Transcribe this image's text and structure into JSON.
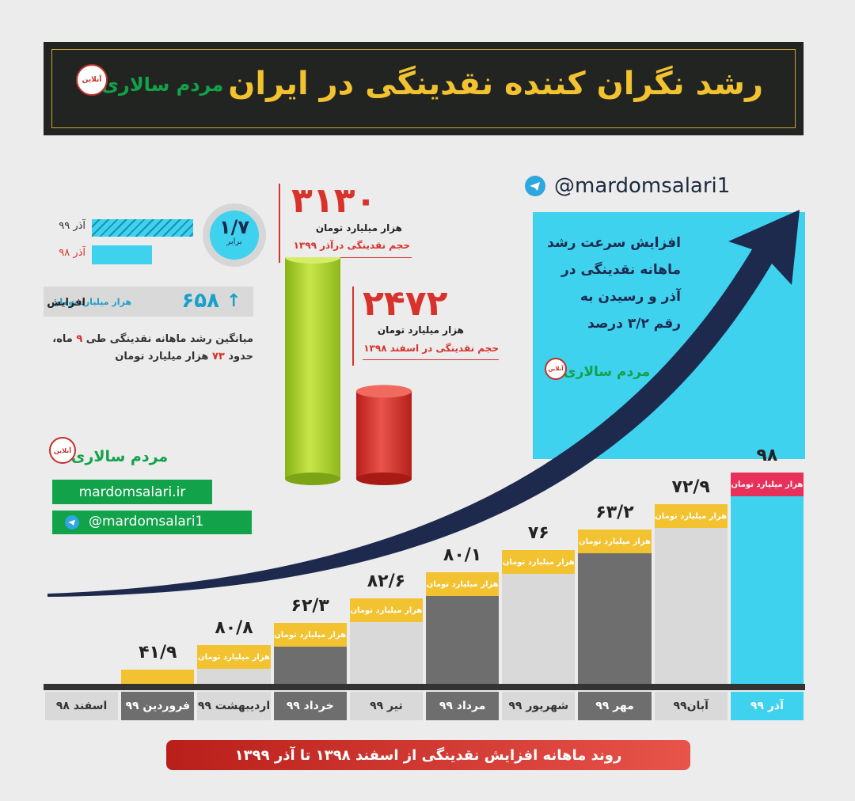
{
  "header": {
    "title": "رشد نگران کننده نقدینگی در ایران",
    "brand": "مردم سالاری",
    "seal": "آنلاین"
  },
  "telegram_top": "@mardomsalari1",
  "colors": {
    "gray": "#6e6e6e",
    "light_gray": "#d9d9d9",
    "cyan": "#3ed2ee",
    "pink": "#e8315a",
    "yellow": "#f2c230",
    "green": "#a6cf2a",
    "red": "#d8322c",
    "navy": "#1d2a4e"
  },
  "callout": {
    "text_lines": [
      "افزایش سرعت رشد",
      "ماهانه نقدینگی در",
      "آذر و رسیدن به",
      "رقم ۳/۲ درصد"
    ],
    "brand": "مردم سالاری"
  },
  "comparison": {
    "ratio": "۱/۷",
    "ratio_label": "برابر",
    "legend": [
      {
        "label": "آذر ۹۹"
      },
      {
        "label": "آذر ۹۸"
      }
    ]
  },
  "increase": {
    "value": "۶۵۸",
    "unit": "هزار میلیارد تومان",
    "label": "افزایش"
  },
  "average": {
    "line1_pre": "میانگین رشد ماهانه نقدینگی طی ",
    "months": "۹",
    "line1_post": " ماه،",
    "line2_pre": "حدود ",
    "value": "۷۳",
    "line2_post": " هزار میلیارد تومان"
  },
  "cylinders": [
    {
      "value_label": "۳۱۳۰",
      "unit": "هزار میلیارد تومان",
      "caption": "حجم نقدینگی درآذر ۱۳۹۹",
      "value": 3130
    },
    {
      "value_label": "۲۴۷۲",
      "unit": "هزار میلیارد تومان",
      "caption": "حجم نقدینگی در اسفند ۱۳۹۸",
      "value": 2472
    }
  ],
  "links": {
    "brand": "مردم سالاری",
    "website": "mardomsalari.ir",
    "telegram": "@mardomsalari1"
  },
  "footer": "روند ماهانه افزایش نقدینگی از اسفند ۱۳۹۸ تا آذر ۱۳۹۹",
  "chart_data": {
    "type": "bar",
    "categories": [
      "اسفند ۹۸",
      "فروردین ۹۹",
      "اردیبهشت ۹۹",
      "خرداد ۹۹",
      "تیر ۹۹",
      "مرداد ۹۹",
      "شهریور ۹۹",
      "مهر ۹۹",
      "آبان۹۹",
      "آذر ۹۹"
    ],
    "values": [
      null,
      41.9,
      80.8,
      62.3,
      82.6,
      80.1,
      76,
      63.2,
      72.9,
      98
    ],
    "value_labels": [
      "",
      "۴۱/۹",
      "۸۰/۸",
      "۶۲/۳",
      "۸۲/۶",
      "۸۰/۱",
      "۷۶",
      "۶۳/۲",
      "۷۲/۹",
      "۹۸"
    ],
    "unit_label": "هزار میلیارد تومان",
    "caption": "روند ماهانه افزایش نقدینگی از اسفند ۱۳۹۸ تا آذر ۱۳۹۹"
  }
}
